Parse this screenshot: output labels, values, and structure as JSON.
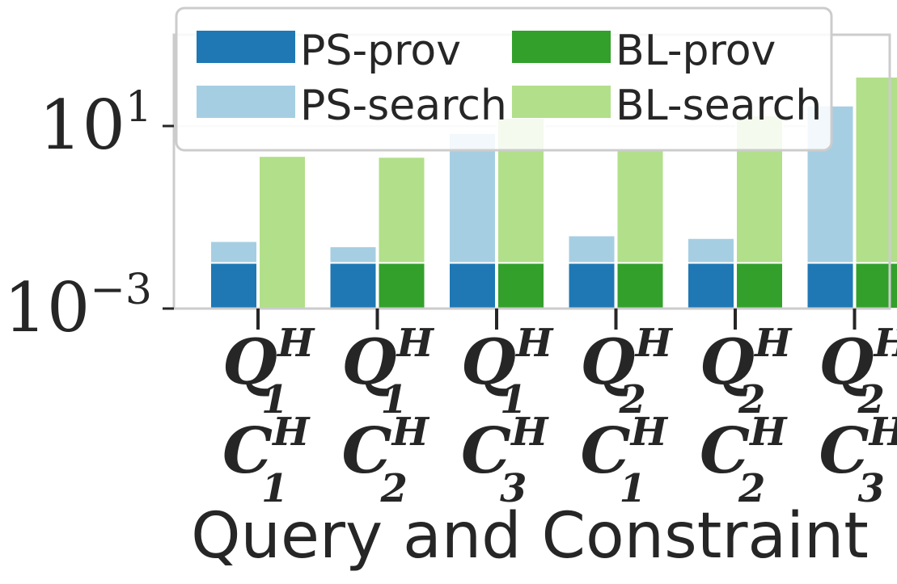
{
  "chart_data": {
    "type": "bar",
    "title": "",
    "xlabel": "Query and Constraint",
    "ylabel": "",
    "y_scale": "log",
    "ylim": [
      0.001,
      1000
    ],
    "yticks": [
      {
        "base": "10",
        "exp": "1"
      },
      {
        "base": "10",
        "exp": "−3"
      }
    ],
    "yticks_values": [
      10,
      0.001
    ],
    "grid": true,
    "legend_position": "top",
    "categories": [
      {
        "q": "Q",
        "q_sup": "H",
        "q_sub": "1",
        "c": "C",
        "c_sup": "H",
        "c_sub": "1"
      },
      {
        "q": "Q",
        "q_sup": "H",
        "q_sub": "1",
        "c": "C",
        "c_sup": "H",
        "c_sub": "2"
      },
      {
        "q": "Q",
        "q_sup": "H",
        "q_sub": "1",
        "c": "C",
        "c_sup": "H",
        "c_sub": "3"
      },
      {
        "q": "Q",
        "q_sup": "H",
        "q_sub": "2",
        "c": "C",
        "c_sup": "H",
        "c_sub": "1"
      },
      {
        "q": "Q",
        "q_sup": "H",
        "q_sub": "2",
        "c": "C",
        "c_sup": "H",
        "c_sub": "2"
      },
      {
        "q": "Q",
        "q_sup": "H",
        "q_sub": "2",
        "c": "C",
        "c_sup": "H",
        "c_sub": "3"
      }
    ],
    "series": [
      {
        "name": "PS-prov",
        "color": "#1f78b4",
        "group": "PS",
        "values": [
          0.01,
          0.01,
          0.01,
          0.01,
          0.01,
          0.01
        ]
      },
      {
        "name": "PS-search",
        "color": "#a6cee3",
        "group": "PS",
        "values": [
          0.03,
          0.023,
          7,
          0.04,
          0.035,
          28
        ]
      },
      {
        "name": "BL-prov",
        "color": "#33a02c",
        "group": "BL",
        "values": [
          0,
          0.01,
          0.01,
          0.01,
          0.01,
          0.01
        ]
      },
      {
        "name": "BL-search",
        "color": "#b2df8a",
        "group": "BL",
        "values": [
          2.2,
          2.1,
          15,
          3.2,
          17,
          120
        ]
      }
    ]
  }
}
